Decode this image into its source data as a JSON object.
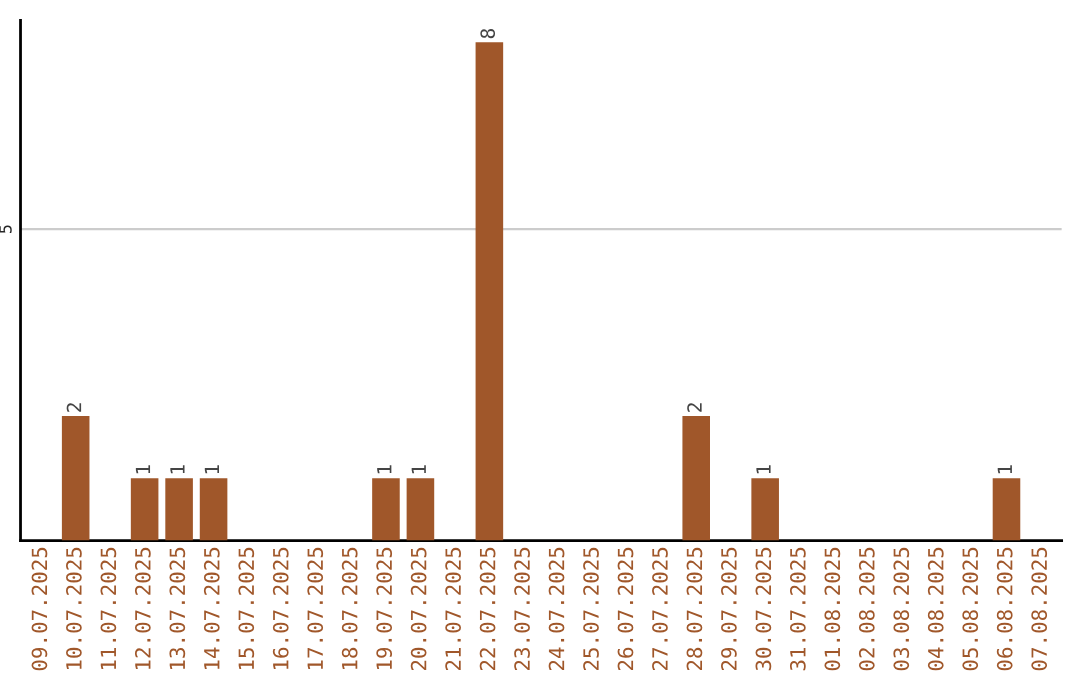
{
  "chart_data": {
    "type": "bar",
    "categories": [
      "09.07.2025",
      "10.07.2025",
      "11.07.2025",
      "12.07.2025",
      "13.07.2025",
      "14.07.2025",
      "15.07.2025",
      "16.07.2025",
      "17.07.2025",
      "18.07.2025",
      "19.07.2025",
      "20.07.2025",
      "21.07.2025",
      "22.07.2025",
      "23.07.2025",
      "24.07.2025",
      "25.07.2025",
      "26.07.2025",
      "27.07.2025",
      "28.07.2025",
      "29.07.2025",
      "30.07.2025",
      "31.07.2025",
      "01.08.2025",
      "02.08.2025",
      "03.08.2025",
      "04.08.2025",
      "05.08.2025",
      "06.08.2025",
      "07.08.2025"
    ],
    "values": [
      0,
      2,
      0,
      1,
      1,
      1,
      0,
      0,
      0,
      0,
      1,
      1,
      0,
      8,
      0,
      0,
      0,
      0,
      0,
      2,
      0,
      1,
      0,
      0,
      0,
      0,
      0,
      0,
      1,
      0
    ],
    "value_labels": [
      null,
      "2",
      null,
      "1",
      "1",
      "1",
      null,
      null,
      null,
      null,
      "1",
      "1",
      null,
      "8",
      null,
      null,
      null,
      null,
      null,
      "2",
      null,
      "1",
      null,
      null,
      null,
      null,
      null,
      null,
      "1",
      null
    ],
    "color": "#a0572a",
    "ylim": [
      0,
      8.35
    ],
    "yticks": [
      5
    ],
    "grid": "y"
  }
}
